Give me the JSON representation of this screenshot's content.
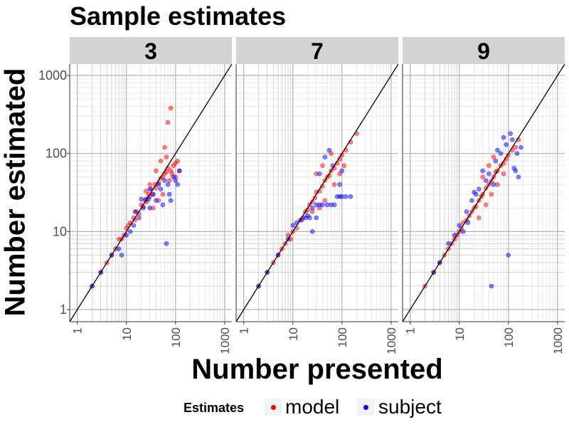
{
  "title": "Sample estimates",
  "chart_data": {
    "type": "scatter",
    "title": "Sample estimates",
    "xlabel": "Number presented",
    "ylabel": "Number estimated",
    "x_scale": "log10",
    "y_scale": "log10",
    "xlim": [
      0.7,
      1400
    ],
    "ylim": [
      0.7,
      1400
    ],
    "x_ticks": [
      "1",
      "10",
      "100",
      "1000"
    ],
    "y_ticks": [
      "1",
      "10",
      "100",
      "1000"
    ],
    "reference_line": "y = x",
    "grid": true,
    "legend": {
      "title": "Estimates",
      "position": "bottom",
      "entries": [
        {
          "label": "model",
          "color": "#ff0000"
        },
        {
          "label": "subject",
          "color": "#0000ff"
        }
      ]
    },
    "facets": [
      {
        "label": "3",
        "series": [
          {
            "name": "model",
            "color": "#ff0000",
            "points": [
              [
                2,
                2
              ],
              [
                3,
                3
              ],
              [
                4,
                4
              ],
              [
                5,
                5
              ],
              [
                6,
                6
              ],
              [
                7,
                8
              ],
              [
                8,
                8
              ],
              [
                9,
                9
              ],
              [
                10,
                11
              ],
              [
                11,
                12
              ],
              [
                12,
                13
              ],
              [
                14,
                15
              ],
              [
                15,
                14
              ],
              [
                16,
                18
              ],
              [
                18,
                17
              ],
              [
                20,
                22
              ],
              [
                22,
                21
              ],
              [
                24,
                25
              ],
              [
                26,
                24
              ],
              [
                28,
                30
              ],
              [
                30,
                28
              ],
              [
                32,
                35
              ],
              [
                35,
                30
              ],
              [
                38,
                40
              ],
              [
                40,
                36
              ],
              [
                45,
                42
              ],
              [
                50,
                48
              ],
              [
                55,
                50
              ],
              [
                60,
                55
              ],
              [
                65,
                58
              ],
              [
                70,
                65
              ],
              [
                80,
                60
              ],
              [
                90,
                70
              ],
              [
                100,
                75
              ],
              [
                110,
                80
              ],
              [
                40,
                60
              ],
              [
                50,
                80
              ],
              [
                60,
                120
              ],
              [
                70,
                250
              ],
              [
                80,
                380
              ],
              [
                55,
                30
              ],
              [
                45,
                25
              ],
              [
                35,
                20
              ],
              [
                30,
                40
              ],
              [
                25,
                33
              ],
              [
                120,
                60
              ],
              [
                100,
                50
              ],
              [
                75,
                45
              ],
              [
                65,
                90
              ],
              [
                85,
                55
              ]
            ]
          },
          {
            "name": "subject",
            "color": "#0000ff",
            "points": [
              [
                2,
                2
              ],
              [
                3,
                3
              ],
              [
                5,
                5
              ],
              [
                7,
                6
              ],
              [
                8,
                5
              ],
              [
                10,
                9
              ],
              [
                12,
                10
              ],
              [
                14,
                12
              ],
              [
                15,
                18
              ],
              [
                18,
                15
              ],
              [
                20,
                26
              ],
              [
                22,
                20
              ],
              [
                25,
                26
              ],
              [
                28,
                26
              ],
              [
                30,
                20
              ],
              [
                35,
                30
              ],
              [
                40,
                25
              ],
              [
                45,
                40
              ],
              [
                50,
                35
              ],
              [
                60,
                45
              ],
              [
                70,
                40
              ],
              [
                80,
                25
              ],
              [
                90,
                50
              ],
              [
                100,
                45
              ],
              [
                110,
                40
              ],
              [
                120,
                60
              ],
              [
                30,
                35
              ],
              [
                55,
                22
              ],
              [
                65,
                7
              ],
              [
                75,
                30
              ]
            ]
          }
        ]
      },
      {
        "label": "7",
        "series": [
          {
            "name": "model",
            "color": "#ff0000",
            "points": [
              [
                2,
                2
              ],
              [
                3,
                3
              ],
              [
                4,
                4
              ],
              [
                5,
                5
              ],
              [
                6,
                6
              ],
              [
                7,
                7
              ],
              [
                8,
                9
              ],
              [
                9,
                8
              ],
              [
                10,
                10
              ],
              [
                12,
                11
              ],
              [
                14,
                14
              ],
              [
                16,
                15
              ],
              [
                18,
                18
              ],
              [
                20,
                19
              ],
              [
                22,
                22
              ],
              [
                25,
                24
              ],
              [
                28,
                27
              ],
              [
                30,
                32
              ],
              [
                35,
                33
              ],
              [
                40,
                38
              ],
              [
                45,
                45
              ],
              [
                50,
                50
              ],
              [
                55,
                52
              ],
              [
                60,
                60
              ],
              [
                70,
                65
              ],
              [
                80,
                75
              ],
              [
                90,
                85
              ],
              [
                100,
                95
              ],
              [
                120,
                110
              ],
              [
                150,
                140
              ],
              [
                200,
                180
              ],
              [
                30,
                55
              ],
              [
                40,
                70
              ],
              [
                60,
                100
              ],
              [
                45,
                25
              ],
              [
                35,
                20
              ],
              [
                25,
                18
              ],
              [
                70,
                40
              ],
              [
                90,
                55
              ],
              [
                110,
                70
              ]
            ]
          },
          {
            "name": "subject",
            "color": "#0000ff",
            "points": [
              [
                2,
                2
              ],
              [
                3,
                3
              ],
              [
                5,
                5
              ],
              [
                8,
                8
              ],
              [
                10,
                12
              ],
              [
                12,
                13
              ],
              [
                15,
                14
              ],
              [
                18,
                15
              ],
              [
                20,
                16
              ],
              [
                22,
                15
              ],
              [
                25,
                20
              ],
              [
                30,
                22
              ],
              [
                35,
                22
              ],
              [
                40,
                22
              ],
              [
                50,
                22
              ],
              [
                60,
                22
              ],
              [
                70,
                22
              ],
              [
                80,
                28
              ],
              [
                90,
                28
              ],
              [
                100,
                28
              ],
              [
                120,
                28
              ],
              [
                150,
                28
              ],
              [
                25,
                10
              ],
              [
                30,
                15
              ],
              [
                35,
                55
              ],
              [
                45,
                90
              ],
              [
                55,
                110
              ],
              [
                65,
                70
              ],
              [
                90,
                40
              ],
              [
                100,
                60
              ]
            ]
          }
        ]
      },
      {
        "label": "9",
        "series": [
          {
            "name": "model",
            "color": "#ff0000",
            "points": [
              [
                2,
                2
              ],
              [
                3,
                3
              ],
              [
                4,
                4
              ],
              [
                5,
                5
              ],
              [
                6,
                6
              ],
              [
                7,
                7
              ],
              [
                8,
                8
              ],
              [
                9,
                9
              ],
              [
                10,
                10
              ],
              [
                11,
                11
              ],
              [
                12,
                13
              ],
              [
                14,
                14
              ],
              [
                16,
                16
              ],
              [
                18,
                18
              ],
              [
                20,
                20
              ],
              [
                22,
                21
              ],
              [
                25,
                25
              ],
              [
                28,
                28
              ],
              [
                30,
                30
              ],
              [
                35,
                36
              ],
              [
                40,
                40
              ],
              [
                45,
                44
              ],
              [
                50,
                50
              ],
              [
                55,
                58
              ],
              [
                60,
                60
              ],
              [
                70,
                70
              ],
              [
                80,
                75
              ],
              [
                90,
                85
              ],
              [
                100,
                95
              ],
              [
                120,
                110
              ],
              [
                140,
                120
              ],
              [
                160,
                150
              ],
              [
                30,
                50
              ],
              [
                40,
                70
              ],
              [
                50,
                90
              ],
              [
                25,
                15
              ],
              [
                35,
                22
              ],
              [
                45,
                30
              ],
              [
                60,
                40
              ],
              [
                80,
                55
              ]
            ]
          },
          {
            "name": "subject",
            "color": "#0000ff",
            "points": [
              [
                3,
                3
              ],
              [
                4,
                4
              ],
              [
                6,
                7
              ],
              [
                8,
                9
              ],
              [
                10,
                12
              ],
              [
                12,
                10
              ],
              [
                14,
                18
              ],
              [
                15,
                13
              ],
              [
                18,
                25
              ],
              [
                20,
                32
              ],
              [
                22,
                30
              ],
              [
                25,
                35
              ],
              [
                30,
                60
              ],
              [
                35,
                45
              ],
              [
                40,
                55
              ],
              [
                45,
                2
              ],
              [
                50,
                40
              ],
              [
                55,
                80
              ],
              [
                60,
                110
              ],
              [
                70,
                100
              ],
              [
                80,
                160
              ],
              [
                90,
                130
              ],
              [
                100,
                5
              ],
              [
                110,
                180
              ],
              [
                120,
                150
              ],
              [
                130,
                65
              ],
              [
                140,
                60
              ],
              [
                150,
                100
              ],
              [
                160,
                50
              ],
              [
                180,
                120
              ]
            ]
          }
        ]
      }
    ]
  }
}
